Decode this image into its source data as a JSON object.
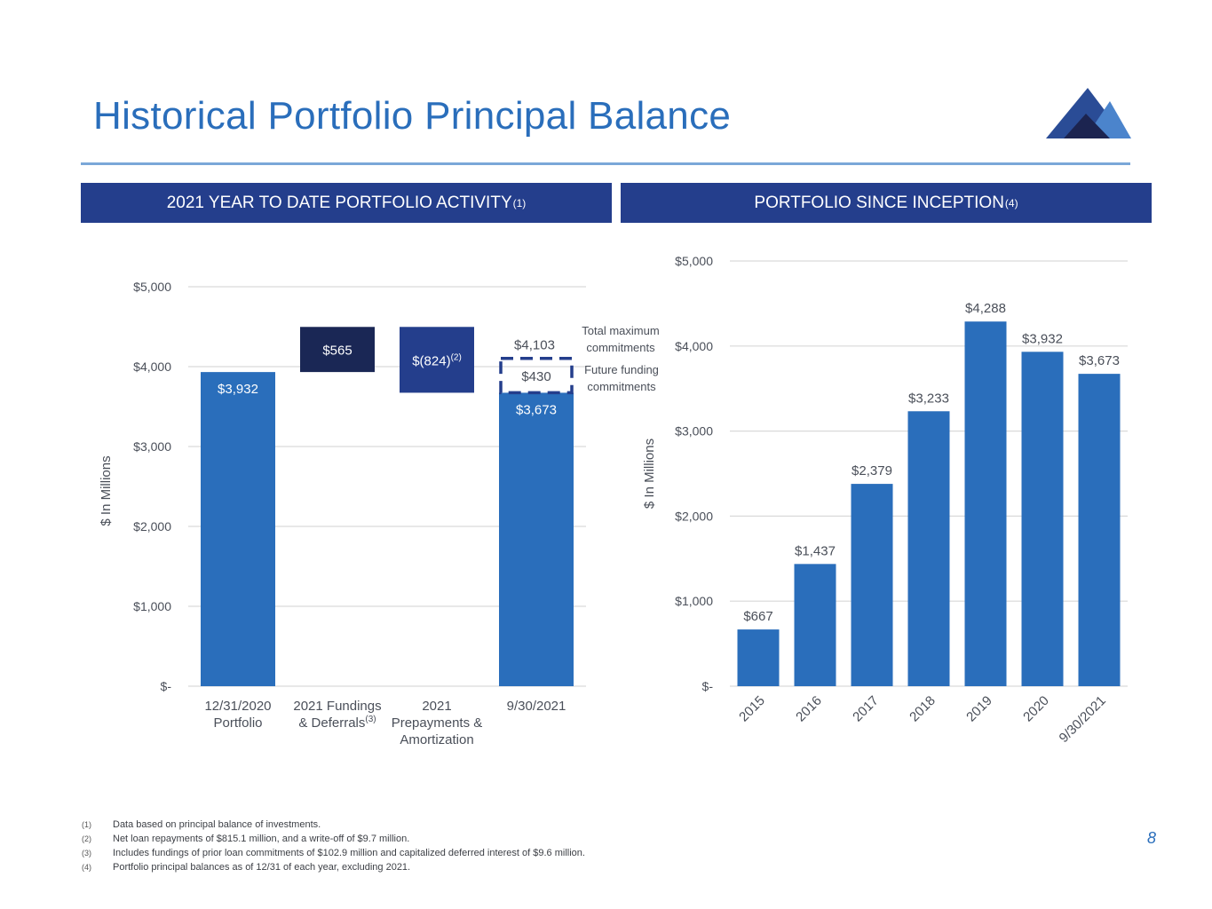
{
  "page_title": "Historical Portfolio Principal Balance",
  "page_number": "8",
  "colors": {
    "accent": "#2a6ebb",
    "header": "#243e8c",
    "bar": "#2a6ebb",
    "dark_bar": "#1a2755",
    "mid_bar": "#243e8c"
  },
  "left_header": {
    "text": "2021 YEAR TO DATE PORTFOLIO ACTIVITY",
    "sup": "(1)"
  },
  "right_header": {
    "text": "PORTFOLIO SINCE INCEPTION",
    "sup": "(4)"
  },
  "chart_data": [
    {
      "type": "bar",
      "subtype": "waterfall",
      "title": "2021 YEAR TO DATE PORTFOLIO ACTIVITY(1)",
      "ylabel": "$ In Millions",
      "ylim": [
        0,
        5000
      ],
      "yticks": [
        0,
        1000,
        2000,
        3000,
        4000,
        5000
      ],
      "ytick_labels": [
        "$-",
        "$1,000",
        "$2,000",
        "$3,000",
        "$4,000",
        "$5,000"
      ],
      "categories": [
        "12/31/2020 Portfolio",
        "2021 Fundings & Deferrals(3)",
        "2021 Prepayments & Amortization",
        "9/30/2021"
      ],
      "category_lines": [
        {
          "lines": [
            "12/31/2020",
            "Portfolio"
          ],
          "sup": ""
        },
        {
          "lines": [
            "2021 Fundings",
            "& Deferrals"
          ],
          "sup": "(3)"
        },
        {
          "lines": [
            "2021",
            "Prepayments &",
            "Amortization"
          ],
          "sup": ""
        },
        {
          "lines": [
            "9/30/2021"
          ],
          "sup": ""
        }
      ],
      "bars": [
        {
          "from": 0,
          "to": 3932,
          "label": "$3,932",
          "sup": "",
          "style": "total"
        },
        {
          "from": 3932,
          "to": 4497,
          "label": "$565",
          "sup": "",
          "style": "increase"
        },
        {
          "from": 3673,
          "to": 4497,
          "label": "$(824)",
          "sup": "(2)",
          "style": "decrease"
        },
        {
          "from": 0,
          "to": 3673,
          "label": "$3,673",
          "sup": "",
          "style": "total"
        }
      ],
      "future_funding": {
        "from": 3673,
        "to": 4103,
        "label": "$430",
        "top_label": "$4,103"
      },
      "annotations": [
        "Total maximum",
        "commitments",
        "Future funding",
        "commitments"
      ]
    },
    {
      "type": "bar",
      "title": "PORTFOLIO SINCE INCEPTION(4)",
      "ylabel": "$ In Millions",
      "ylim": [
        0,
        5000
      ],
      "yticks": [
        0,
        1000,
        2000,
        3000,
        4000,
        5000
      ],
      "ytick_labels": [
        "$-",
        "$1,000",
        "$2,000",
        "$3,000",
        "$4,000",
        "$5,000"
      ],
      "categories": [
        "2015",
        "2016",
        "2017",
        "2018",
        "2019",
        "2020",
        "9/30/2021"
      ],
      "values": [
        667,
        1437,
        2379,
        3233,
        4288,
        3932,
        3673
      ],
      "value_labels": [
        "$667",
        "$1,437",
        "$2,379",
        "$3,233",
        "$4,288",
        "$3,932",
        "$3,673"
      ]
    }
  ],
  "footnotes": [
    {
      "num": "(1)",
      "text": "Data based on principal balance of investments."
    },
    {
      "num": "(2)",
      "text": "Net loan repayments of $815.1 million, and a write-off of $9.7 million."
    },
    {
      "num": "(3)",
      "text": "Includes fundings of prior loan commitments of $102.9 million and capitalized deferred interest of $9.6 million."
    },
    {
      "num": "(4)",
      "text": "Portfolio principal balances as of 12/31 of each year, excluding  2021."
    }
  ]
}
